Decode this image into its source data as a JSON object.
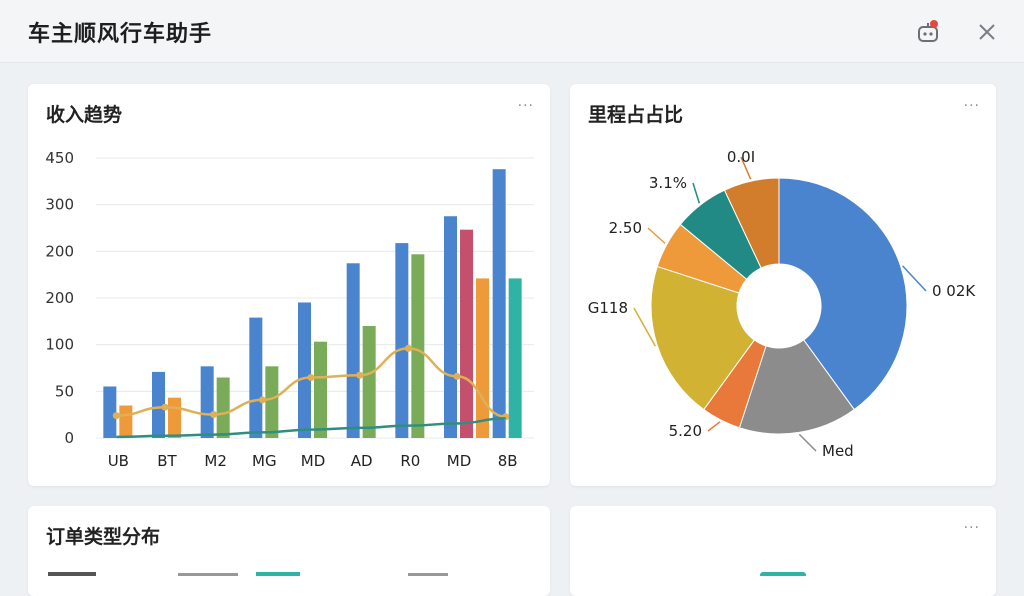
{
  "app": {
    "title": "车主顺风行车助手"
  },
  "header": {
    "notify_icon": "robot-bell-icon",
    "close_icon": "close-icon"
  },
  "cards": {
    "income": {
      "title": "收入趋势",
      "more": "···"
    },
    "mileage": {
      "title": "里程占占比",
      "more": "···"
    },
    "orders": {
      "title": "订单类型分布",
      "more": ""
    },
    "fourth": {
      "title": "",
      "more": "···"
    }
  },
  "chart_data": [
    {
      "type": "bar",
      "title": "收入趋势",
      "categories": [
        "UB",
        "BT",
        "M2",
        "MG",
        "MD",
        "AD",
        "R0",
        "MD",
        "8B"
      ],
      "ytick_labels": [
        "0",
        "50",
        "100",
        "200",
        "200",
        "300",
        "450"
      ],
      "series": [
        {
          "values": [
            92,
            118,
            128,
            215,
            242,
            312,
            348,
            396,
            480
          ],
          "color": "#4a84cf"
        },
        {
          "values": [
            58,
            72,
            0,
            0,
            0,
            0,
            0,
            0,
            0
          ],
          "color": "#ee9a3a"
        },
        {
          "values": [
            0,
            0,
            108,
            128,
            0,
            0,
            0,
            0,
            0
          ],
          "color": "#7aab58"
        },
        {
          "values": [
            0,
            0,
            0,
            0,
            172,
            200,
            328,
            0,
            0
          ],
          "color": "#7aab58"
        },
        {
          "values": [
            0,
            0,
            0,
            0,
            0,
            0,
            0,
            372,
            0
          ],
          "color": "#c4506e"
        },
        {
          "values": [
            0,
            0,
            0,
            0,
            0,
            0,
            0,
            285,
            0
          ],
          "color": "#ee9a3a"
        },
        {
          "values": [
            0,
            0,
            0,
            0,
            0,
            0,
            0,
            0,
            285
          ],
          "color": "#2fb3a4"
        }
      ],
      "lines": [
        {
          "values": [
            40,
            55,
            42,
            68,
            108,
            112,
            160,
            110,
            38
          ],
          "color": "#e0b056"
        },
        {
          "values": [
            2,
            4,
            6,
            10,
            15,
            18,
            22,
            26,
            35
          ],
          "color": "#2f8f7e"
        }
      ],
      "grid": true
    },
    {
      "type": "pie",
      "title": "里程占占比",
      "slices": [
        {
          "label": "0 02K",
          "value": 40,
          "color": "#4a84cf"
        },
        {
          "label": "Med",
          "value": 15,
          "color": "#8c8c8c"
        },
        {
          "label": "5.20",
          "value": 5,
          "color": "#e8793a"
        },
        {
          "label": "G118",
          "value": 20,
          "color": "#d2b233"
        },
        {
          "label": "2.50",
          "value": 6,
          "color": "#ee9a3a"
        },
        {
          "label": "3.1%",
          "value": 7,
          "color": "#228a84"
        },
        {
          "label": "0.0I",
          "value": 7,
          "color": "#d27d2c"
        }
      ],
      "donut": true
    }
  ]
}
